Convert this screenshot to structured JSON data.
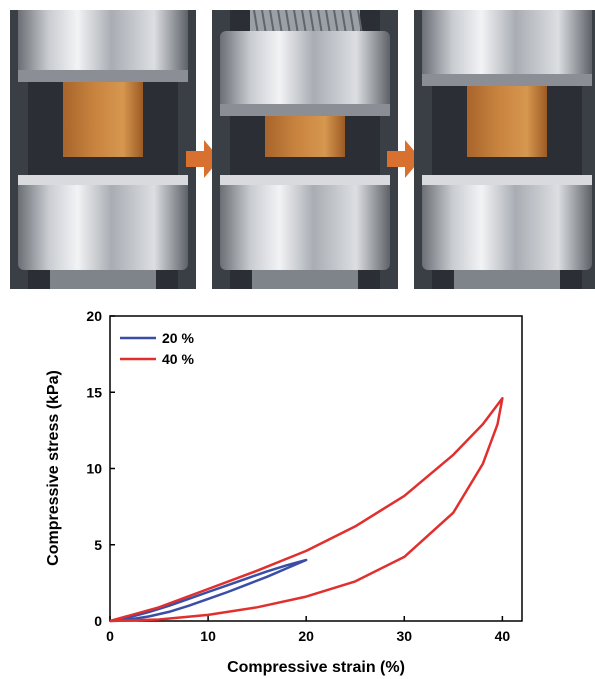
{
  "photos": [
    {
      "stage": "uncompressed",
      "sample_height": 1.0
    },
    {
      "stage": "compressed",
      "sample_height": 0.55
    },
    {
      "stage": "recovered",
      "sample_height": 0.95
    }
  ],
  "colors": {
    "sample": "#c9843f",
    "arrow": "#d8712f",
    "series_20": "#3a4ea8",
    "series_40": "#e0302e"
  },
  "chart_data": {
    "type": "line",
    "xlabel": "Compressive strain (%)",
    "ylabel": "Compressive stress (kPa)",
    "xlim": [
      0,
      42
    ],
    "ylim": [
      0,
      20
    ],
    "xticks": [
      "0",
      "10",
      "20",
      "30",
      "40"
    ],
    "yticks": [
      "0",
      "5",
      "10",
      "15",
      "20"
    ],
    "legend_position": "top-left",
    "series": [
      {
        "name": "20 %",
        "color": "#3a4ea8",
        "x": [
          0,
          2,
          4,
          6,
          8,
          10,
          12,
          14,
          16,
          18,
          20,
          18,
          16,
          14,
          12,
          10,
          8,
          6,
          4,
          2,
          0
        ],
        "y": [
          0,
          0.25,
          0.6,
          1.0,
          1.45,
          1.9,
          2.35,
          2.8,
          3.25,
          3.65,
          4.0,
          3.45,
          2.9,
          2.4,
          1.9,
          1.45,
          1.0,
          0.6,
          0.3,
          0.1,
          0
        ]
      },
      {
        "name": "40 %",
        "color": "#e0302e",
        "x": [
          0,
          5,
          10,
          15,
          20,
          25,
          30,
          35,
          38,
          40,
          39.5,
          38,
          35,
          30,
          25,
          20,
          15,
          10,
          5,
          0
        ],
        "y": [
          0,
          0.9,
          2.1,
          3.3,
          4.6,
          6.2,
          8.2,
          10.9,
          12.9,
          14.6,
          12.9,
          10.3,
          7.1,
          4.2,
          2.6,
          1.6,
          0.9,
          0.4,
          0.1,
          0
        ]
      }
    ]
  }
}
